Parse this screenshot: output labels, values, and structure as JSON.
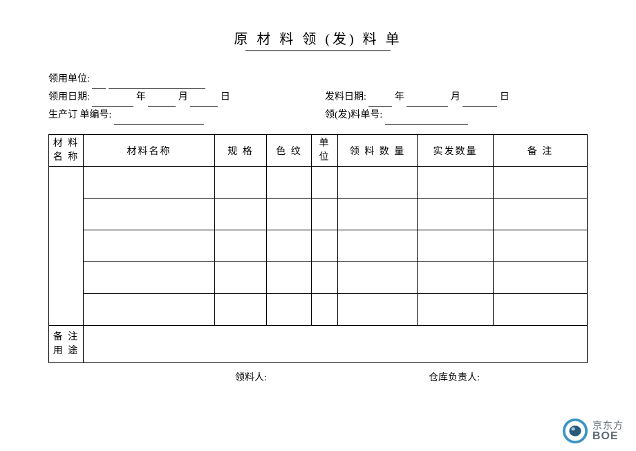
{
  "title": "原 材 料 领 (发)  料   单",
  "meta": {
    "unit_label": "领用单位:",
    "use_date_label": "领用日期:",
    "year": "年",
    "month": "月",
    "day": "日",
    "issue_date_label": "发料日期:",
    "prod_order_label": "生产订 单编号:",
    "slip_no_label": "领(发)料单号:"
  },
  "headers": {
    "group": "材 料\n名 称",
    "name": "材料名称",
    "spec": "规  格",
    "color": "色 纹",
    "unit": "单\n位",
    "req_qty": "领 料 数 量",
    "act_qty": "实发数量",
    "remark": "备  注"
  },
  "remark_row": "备 注\n用 途",
  "sign": {
    "picker": "领料人:",
    "keeper": "仓库负责人:"
  },
  "logo": {
    "cn": "京东方",
    "en": "BOE",
    "ring_color": "#3a94c5",
    "core_color": "#2a5a7a"
  },
  "style": {
    "border_color": "#000000",
    "text_color": "#000000",
    "background": "#ffffff",
    "title_fontsize": 20,
    "body_fontsize": 14
  }
}
